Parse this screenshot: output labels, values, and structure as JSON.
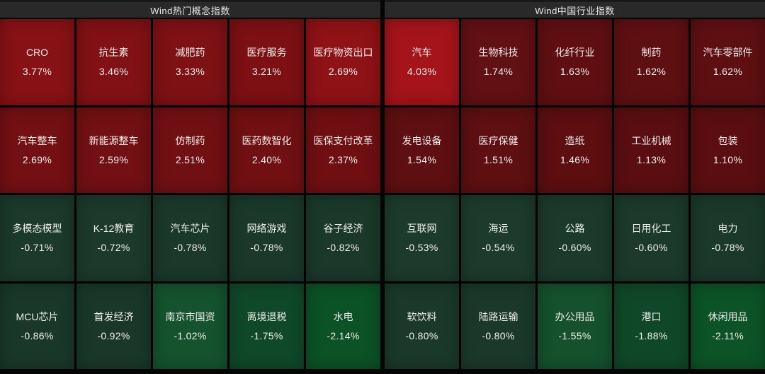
{
  "colors": {
    "page_background": "#050505",
    "header_background": "#292929",
    "header_text": "#e9e9e9",
    "tile_text": "#f2eeee",
    "positive_strong": "#a4141a",
    "positive_weak": "#5c0e11",
    "negative_weak": "#1b3a2b",
    "negative_strong": "#0b5226",
    "grid_line": "#000000"
  },
  "sections": [
    {
      "title": "Wind热门概念指数",
      "tiles": [
        {
          "name": "CRO",
          "value": "3.77%",
          "color": "#871215"
        },
        {
          "name": "抗生素",
          "value": "3.46%",
          "color": "#811114"
        },
        {
          "name": "减肥药",
          "value": "3.33%",
          "color": "#7e1114"
        },
        {
          "name": "医疗服务",
          "value": "3.21%",
          "color": "#7c1013"
        },
        {
          "name": "医疗物资出口",
          "value": "2.69%",
          "color": "#8e1216"
        },
        {
          "name": "汽车整车",
          "value": "2.69%",
          "color": "#731013"
        },
        {
          "name": "新能源整车",
          "value": "2.59%",
          "color": "#721013"
        },
        {
          "name": "仿制药",
          "value": "2.51%",
          "color": "#711013"
        },
        {
          "name": "医药数智化",
          "value": "2.40%",
          "color": "#701012"
        },
        {
          "name": "医保支付改革",
          "value": "2.37%",
          "color": "#6f0f12"
        },
        {
          "name": "多模态模型",
          "value": "-0.71%",
          "color": "#1b3a2b"
        },
        {
          "name": "K-12教育",
          "value": "-0.72%",
          "color": "#1b3a2b"
        },
        {
          "name": "汽车芯片",
          "value": "-0.78%",
          "color": "#1a392a"
        },
        {
          "name": "网络游戏",
          "value": "-0.78%",
          "color": "#1a392a"
        },
        {
          "name": "谷子经济",
          "value": "-0.82%",
          "color": "#1a392a"
        },
        {
          "name": "MCU芯片",
          "value": "-0.86%",
          "color": "#19382a"
        },
        {
          "name": "首发经济",
          "value": "-0.92%",
          "color": "#193829"
        },
        {
          "name": "南京市国资",
          "value": "-1.02%",
          "color": "#14532d"
        },
        {
          "name": "离境退税",
          "value": "-1.75%",
          "color": "#0f4929"
        },
        {
          "name": "水电",
          "value": "-2.14%",
          "color": "#0b5226"
        }
      ]
    },
    {
      "title": "Wind中国行业指数",
      "tiles": [
        {
          "name": "汽车",
          "value": "4.03%",
          "color": "#a4141a"
        },
        {
          "name": "生物科技",
          "value": "1.74%",
          "color": "#611013"
        },
        {
          "name": "化纤行业",
          "value": "1.63%",
          "color": "#5f0f12"
        },
        {
          "name": "制药",
          "value": "1.62%",
          "color": "#5e0f12"
        },
        {
          "name": "汽车零部件",
          "value": "1.62%",
          "color": "#5e0f12"
        },
        {
          "name": "发电设备",
          "value": "1.54%",
          "color": "#5d0f11"
        },
        {
          "name": "医疗保健",
          "value": "1.51%",
          "color": "#5d0f11"
        },
        {
          "name": "造纸",
          "value": "1.46%",
          "color": "#5c0e11"
        },
        {
          "name": "工业机械",
          "value": "1.13%",
          "color": "#5a0e11"
        },
        {
          "name": "包装",
          "value": "1.10%",
          "color": "#5a0e11"
        },
        {
          "name": "互联网",
          "value": "-0.53%",
          "color": "#1c3b2c"
        },
        {
          "name": "海运",
          "value": "-0.54%",
          "color": "#1c3b2c"
        },
        {
          "name": "公路",
          "value": "-0.60%",
          "color": "#1b3a2b"
        },
        {
          "name": "日用化工",
          "value": "-0.60%",
          "color": "#1b3a2b"
        },
        {
          "name": "电力",
          "value": "-0.78%",
          "color": "#1a392a"
        },
        {
          "name": "软饮料",
          "value": "-0.80%",
          "color": "#1a392a"
        },
        {
          "name": "陆路运输",
          "value": "-0.80%",
          "color": "#1a392a"
        },
        {
          "name": "办公用品",
          "value": "-1.55%",
          "color": "#14512c"
        },
        {
          "name": "港口",
          "value": "-1.88%",
          "color": "#0f4828"
        },
        {
          "name": "休闲用品",
          "value": "-2.11%",
          "color": "#0c5327"
        }
      ]
    }
  ],
  "chart_data": [
    {
      "type": "heatmap",
      "title": "Wind热门概念指数",
      "unit": "%",
      "grid": "5x4",
      "legend_position": "none",
      "categories": [
        "CRO",
        "抗生素",
        "减肥药",
        "医疗服务",
        "医疗物资出口",
        "汽车整车",
        "新能源整车",
        "仿制药",
        "医药数智化",
        "医保支付改革",
        "多模态模型",
        "K-12教育",
        "汽车芯片",
        "网络游戏",
        "谷子经济",
        "MCU芯片",
        "首发经济",
        "南京市国资",
        "离境退税",
        "水电"
      ],
      "values": [
        3.77,
        3.46,
        3.33,
        3.21,
        2.69,
        2.69,
        2.59,
        2.51,
        2.4,
        2.37,
        -0.71,
        -0.72,
        -0.78,
        -0.78,
        -0.82,
        -0.86,
        -0.92,
        -1.02,
        -1.75,
        -2.14
      ]
    },
    {
      "type": "heatmap",
      "title": "Wind中国行业指数",
      "unit": "%",
      "grid": "5x4",
      "legend_position": "none",
      "categories": [
        "汽车",
        "生物科技",
        "化纤行业",
        "制药",
        "汽车零部件",
        "发电设备",
        "医疗保健",
        "造纸",
        "工业机械",
        "包装",
        "互联网",
        "海运",
        "公路",
        "日用化工",
        "电力",
        "软饮料",
        "陆路运输",
        "办公用品",
        "港口",
        "休闲用品"
      ],
      "values": [
        4.03,
        1.74,
        1.63,
        1.62,
        1.62,
        1.54,
        1.51,
        1.46,
        1.13,
        1.1,
        -0.53,
        -0.54,
        -0.6,
        -0.6,
        -0.78,
        -0.8,
        -0.8,
        -1.55,
        -1.88,
        -2.11
      ]
    }
  ]
}
